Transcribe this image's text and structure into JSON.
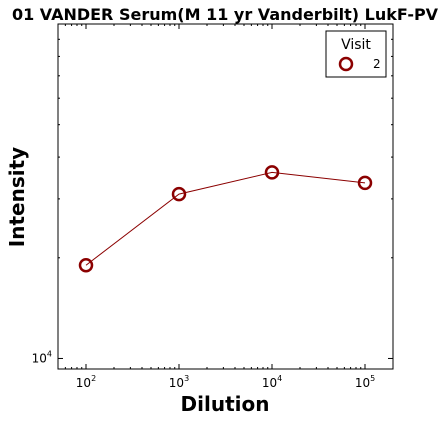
{
  "chart_data": {
    "type": "line",
    "title": "01 VANDER Serum(M 11 yr Vanderbilt) LukF-PV",
    "xlabel": "Dilution",
    "ylabel": "Intensity",
    "x_scale": "log",
    "y_scale": "log",
    "xlim": [
      50,
      200000
    ],
    "ylim": [
      9300,
      100000
    ],
    "x_ticks": [
      {
        "value": 100,
        "base": "10",
        "exp": "2"
      },
      {
        "value": 1000,
        "base": "10",
        "exp": "3"
      },
      {
        "value": 10000,
        "base": "10",
        "exp": "4"
      },
      {
        "value": 100000,
        "base": "10",
        "exp": "5"
      }
    ],
    "y_ticks": [
      {
        "value": 10000,
        "base": "10",
        "exp": "4"
      }
    ],
    "legend": {
      "title": "Visit",
      "placement": "top-right"
    },
    "series": [
      {
        "name": "2",
        "color": "#8b0000",
        "x": [
          100,
          1000,
          10000,
          100000
        ],
        "y": [
          19000,
          31000,
          36000,
          33500
        ]
      }
    ]
  }
}
